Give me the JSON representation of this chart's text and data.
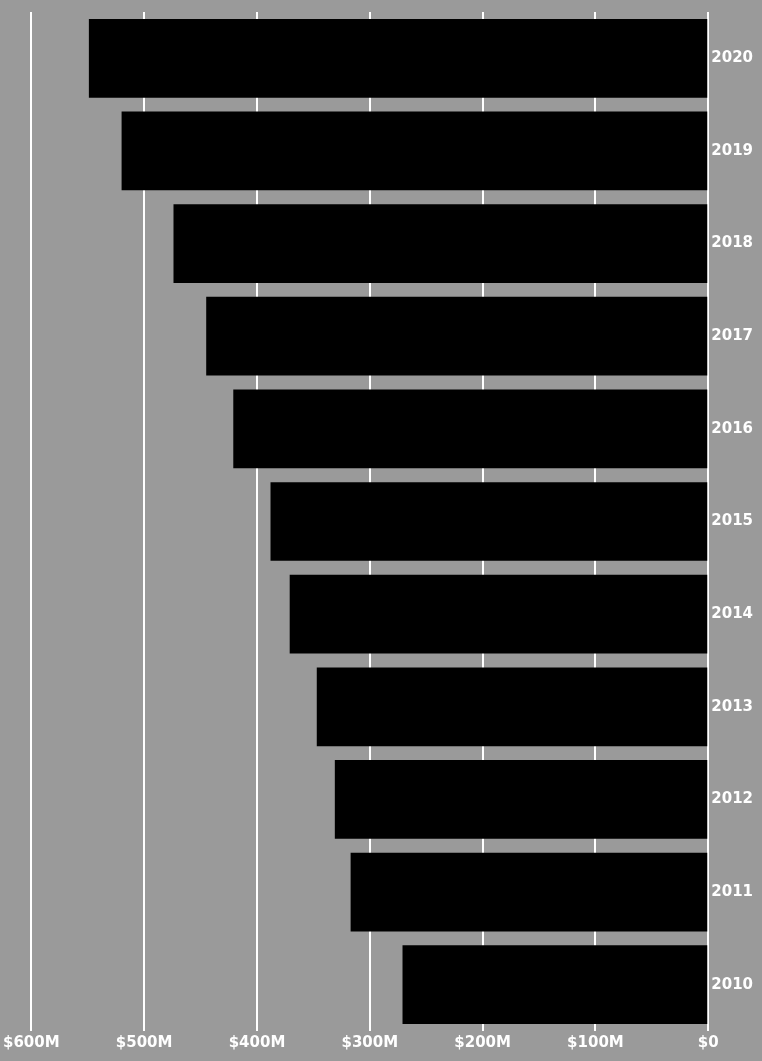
{
  "chart_data": {
    "type": "bar",
    "orientation": "horizontal",
    "categories": [
      "2020",
      "2019",
      "2018",
      "2017",
      "2016",
      "2015",
      "2014",
      "2013",
      "2012",
      "2011",
      "2010"
    ],
    "values": [
      549,
      520,
      474,
      445,
      421,
      388,
      371,
      347,
      331,
      317,
      271
    ],
    "color": "#000000",
    "xlim": [
      600,
      0
    ],
    "xticks": [
      {
        "value": 600,
        "label": "$600M"
      },
      {
        "value": 500,
        "label": "$500M"
      },
      {
        "value": 400,
        "label": "$400M"
      },
      {
        "value": 300,
        "label": "$300M"
      },
      {
        "value": 200,
        "label": "$200M"
      },
      {
        "value": 100,
        "label": "$100M"
      },
      {
        "value": 0,
        "label": "$0"
      }
    ],
    "grid": "x",
    "legend": false
  }
}
